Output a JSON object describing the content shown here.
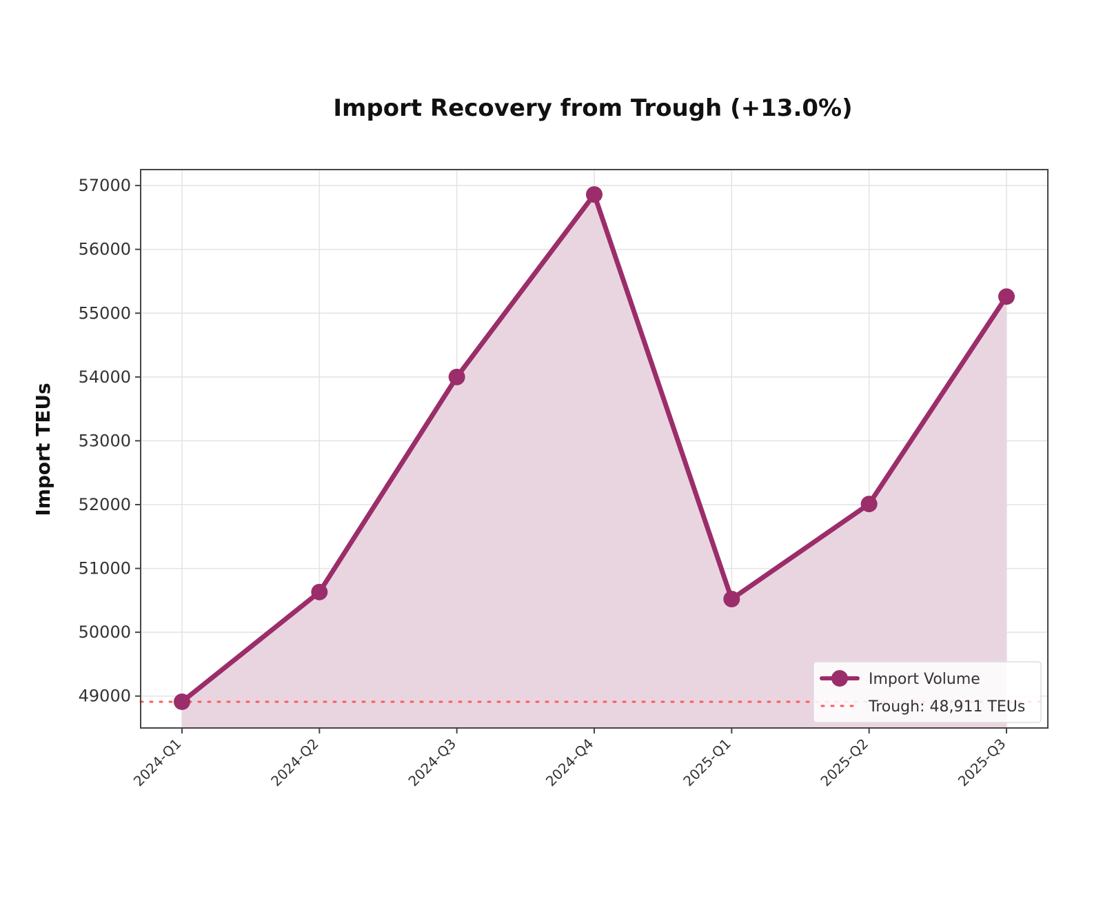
{
  "chart_data": {
    "type": "area",
    "title": "Import Recovery from Trough (+13.0%)",
    "xlabel": "",
    "ylabel": "Import TEUs",
    "categories": [
      "2024-Q1",
      "2024-Q2",
      "2024-Q3",
      "2024-Q4",
      "2025-Q1",
      "2025-Q2",
      "2025-Q3"
    ],
    "series": [
      {
        "name": "Import Volume",
        "values": [
          48911,
          50630,
          54000,
          56860,
          50520,
          52010,
          55260
        ],
        "color": "#9b2d6a",
        "fill_color": "#e9d5e0"
      }
    ],
    "reference_line": {
      "label": "Trough: 48,911 TEUs",
      "value": 48911,
      "color": "#ff5a5a",
      "style": "dotted"
    },
    "yticks": [
      49000,
      50000,
      51000,
      52000,
      53000,
      54000,
      55000,
      56000,
      57000
    ],
    "ylim": [
      48500,
      57250
    ],
    "grid": true,
    "legend_position": "lower right"
  }
}
